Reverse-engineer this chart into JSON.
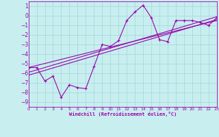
{
  "xlabel": "Windchill (Refroidissement éolien,°C)",
  "background_color": "#c8eef0",
  "grid_color": "#aadddd",
  "line_color": "#9900aa",
  "xlim": [
    0,
    23
  ],
  "ylim": [
    -9.5,
    1.5
  ],
  "yticks": [
    1,
    0,
    -1,
    -2,
    -3,
    -4,
    -5,
    -6,
    -7,
    -8,
    -9
  ],
  "xticks": [
    0,
    1,
    2,
    3,
    4,
    5,
    6,
    7,
    8,
    9,
    10,
    11,
    12,
    13,
    14,
    15,
    16,
    17,
    18,
    19,
    20,
    21,
    22,
    23
  ],
  "series1_x": [
    0,
    1,
    2,
    3,
    4,
    5,
    6,
    7,
    8,
    9,
    10,
    11,
    12,
    13,
    14,
    15,
    16,
    17,
    18,
    19,
    20,
    21,
    22,
    23
  ],
  "series1_y": [
    -5.4,
    -5.4,
    -6.8,
    -6.3,
    -8.5,
    -7.2,
    -7.5,
    -7.6,
    -5.3,
    -3.0,
    -3.2,
    -2.6,
    -0.5,
    0.4,
    1.1,
    -0.2,
    -2.5,
    -2.7,
    -0.5,
    -0.5,
    -0.5,
    -0.7,
    -1.0,
    -0.2
  ],
  "series2_x": [
    0,
    23
  ],
  "series2_y": [
    -5.4,
    -0.5
  ],
  "series3_x": [
    0,
    23
  ],
  "series3_y": [
    -5.9,
    -0.1
  ],
  "series4_x": [
    0,
    23
  ],
  "series4_y": [
    -6.2,
    -0.4
  ]
}
